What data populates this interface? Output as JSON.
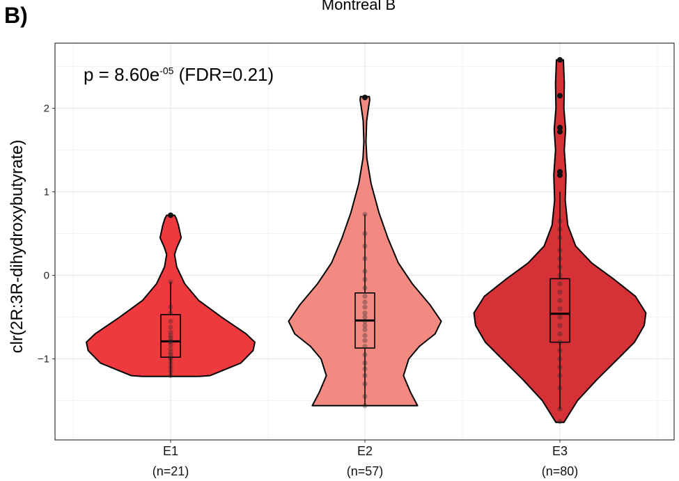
{
  "panel_label": "B)",
  "chart_data": {
    "type": "violin",
    "title": "Montreal B",
    "xlabel": "",
    "ylabel": "clr(2R:3R-dihydroxybutyrate)",
    "ylim": [
      -1.97,
      2.78
    ],
    "yticks": [
      -1,
      0,
      1,
      2
    ],
    "yticklabels": [
      "−1",
      "0",
      "1",
      "2"
    ],
    "grid": true,
    "annotation": {
      "prefix": "p = 8.60e",
      "exponent": "-05",
      "suffix": " (FDR=0.21)"
    },
    "categories": [
      "E1",
      "E2",
      "E3"
    ],
    "category_n": [
      "(n=21)",
      "(n=57)",
      "(n=80)"
    ],
    "colors": [
      "#ee3a3f",
      "#f38a82",
      "#d63136"
    ],
    "groups": [
      {
        "name": "E1",
        "box": {
          "q1": -0.98,
          "median": -0.79,
          "q3": -0.47,
          "whisker_low": -1.2,
          "whisker_high": -0.08
        },
        "violin": {
          "y": [
            -1.21,
            -1.2,
            -1.05,
            -0.9,
            -0.8,
            -0.7,
            -0.5,
            -0.3,
            -0.1,
            0.1,
            0.25,
            0.33,
            0.45,
            0.6,
            0.68,
            0.72
          ],
          "width": [
            0.32,
            0.45,
            0.8,
            0.94,
            0.96,
            0.86,
            0.58,
            0.32,
            0.16,
            0.07,
            0.045,
            0.07,
            0.12,
            0.09,
            0.065,
            0.045
          ]
        },
        "points": [
          0.72,
          -0.08,
          -0.38,
          -0.45,
          -0.55,
          -0.62,
          -0.68,
          -0.72,
          -0.75,
          -0.78,
          -0.8,
          -0.83,
          -0.88,
          -0.92,
          -0.95,
          -0.98,
          -1.0,
          -1.05,
          -1.1,
          -1.15,
          -1.2
        ]
      },
      {
        "name": "E2",
        "box": {
          "q1": -0.87,
          "median": -0.54,
          "q3": -0.21,
          "whisker_low": -1.56,
          "whisker_high": 0.73
        },
        "violin": {
          "y": [
            -1.56,
            -1.4,
            -1.2,
            -1.0,
            -0.85,
            -0.7,
            -0.55,
            -0.35,
            -0.1,
            0.15,
            0.45,
            0.75,
            1.1,
            1.4,
            1.6,
            1.85,
            2.0,
            2.1,
            2.14
          ],
          "width": [
            0.6,
            0.52,
            0.44,
            0.5,
            0.62,
            0.8,
            0.87,
            0.74,
            0.54,
            0.38,
            0.26,
            0.16,
            0.07,
            0.022,
            0.012,
            0.02,
            0.04,
            0.055,
            0.05
          ]
        },
        "points": [
          2.13,
          0.73,
          0.5,
          0.35,
          0.2,
          0.05,
          -0.05,
          -0.15,
          -0.25,
          -0.32,
          -0.38,
          -0.45,
          -0.5,
          -0.55,
          -0.6,
          -0.65,
          -0.72,
          -0.78,
          -0.85,
          -0.95,
          -1.05,
          -1.12,
          -1.2,
          -1.3,
          -1.45,
          -1.56
        ]
      },
      {
        "name": "E3",
        "box": {
          "q1": -0.8,
          "median": -0.46,
          "q3": -0.04,
          "whisker_low": -1.6,
          "whisker_high": 1.0
        },
        "violin": {
          "y": [
            -1.76,
            -1.5,
            -1.25,
            -1.0,
            -0.8,
            -0.6,
            -0.45,
            -0.25,
            -0.05,
            0.15,
            0.35,
            0.6,
            0.9,
            1.2,
            1.5,
            1.75,
            2.0,
            2.3,
            2.58
          ],
          "width": [
            0.045,
            0.2,
            0.42,
            0.66,
            0.85,
            0.96,
            0.98,
            0.86,
            0.62,
            0.36,
            0.18,
            0.09,
            0.06,
            0.07,
            0.05,
            0.065,
            0.045,
            0.05,
            0.04
          ]
        },
        "points": [
          2.58,
          2.15,
          1.77,
          1.72,
          1.24,
          1.2,
          0.65,
          0.55,
          0.45,
          0.3,
          0.2,
          0.1,
          0.0,
          -0.1,
          -0.2,
          -0.3,
          -0.4,
          -0.5,
          -0.6,
          -0.7,
          -0.8,
          -0.9,
          -1.0,
          -1.1,
          -1.2,
          -1.35,
          -1.6,
          -1.75
        ]
      }
    ]
  }
}
